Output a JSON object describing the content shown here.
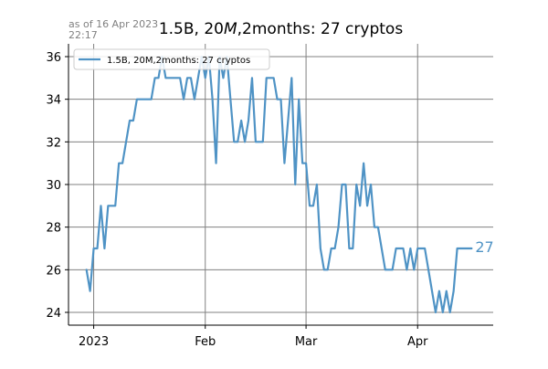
{
  "header": {
    "stamp_line1": "as of 16 Apr 2023",
    "stamp_line2": "22:17",
    "title_a": "1.5B, 20",
    "title_b": "M",
    "title_c": ",2months: 27 cryptos"
  },
  "colors": {
    "line": "#4f93c5",
    "grid": "#808080",
    "stamp": "#808080"
  },
  "chart_data": {
    "type": "line",
    "title": "1.5B, 20M,2months: 27 cryptos",
    "xlabel": "",
    "ylabel": "",
    "x_ticks": [
      {
        "label": "2023",
        "date": "2023-01-01"
      },
      {
        "label": "Feb",
        "date": "2023-02-01"
      },
      {
        "label": "Mar",
        "date": "2023-03-01"
      },
      {
        "label": "Apr",
        "date": "2023-04-01"
      }
    ],
    "y_ticks": [
      24,
      26,
      28,
      30,
      32,
      34,
      36
    ],
    "xlim": [
      "2022-12-25",
      "2023-04-22"
    ],
    "ylim": [
      23.4,
      36.6
    ],
    "grid": true,
    "legend_position": "top-left",
    "end_label": "27",
    "series": [
      {
        "name": "1.5B, 20M,2months: 27 cryptos",
        "x": [
          "2022-12-30",
          "2022-12-31",
          "2023-01-01",
          "2023-01-02",
          "2023-01-03",
          "2023-01-04",
          "2023-01-05",
          "2023-01-06",
          "2023-01-07",
          "2023-01-08",
          "2023-01-09",
          "2023-01-10",
          "2023-01-11",
          "2023-01-12",
          "2023-01-13",
          "2023-01-14",
          "2023-01-15",
          "2023-01-16",
          "2023-01-17",
          "2023-01-18",
          "2023-01-19",
          "2023-01-20",
          "2023-01-21",
          "2023-01-22",
          "2023-01-23",
          "2023-01-24",
          "2023-01-25",
          "2023-01-26",
          "2023-01-27",
          "2023-01-28",
          "2023-01-29",
          "2023-01-30",
          "2023-01-31",
          "2023-02-01",
          "2023-02-02",
          "2023-02-03",
          "2023-02-04",
          "2023-02-05",
          "2023-02-06",
          "2023-02-07",
          "2023-02-08",
          "2023-02-09",
          "2023-02-10",
          "2023-02-11",
          "2023-02-12",
          "2023-02-13",
          "2023-02-14",
          "2023-02-15",
          "2023-02-16",
          "2023-02-17",
          "2023-02-18",
          "2023-02-19",
          "2023-02-20",
          "2023-02-21",
          "2023-02-22",
          "2023-02-23",
          "2023-02-24",
          "2023-02-25",
          "2023-02-26",
          "2023-02-27",
          "2023-02-28",
          "2023-03-01",
          "2023-03-02",
          "2023-03-03",
          "2023-03-04",
          "2023-03-05",
          "2023-03-06",
          "2023-03-07",
          "2023-03-08",
          "2023-03-09",
          "2023-03-10",
          "2023-03-11",
          "2023-03-12",
          "2023-03-13",
          "2023-03-14",
          "2023-03-15",
          "2023-03-16",
          "2023-03-17",
          "2023-03-18",
          "2023-03-19",
          "2023-03-20",
          "2023-03-21",
          "2023-03-22",
          "2023-03-23",
          "2023-03-24",
          "2023-03-25",
          "2023-03-26",
          "2023-03-27",
          "2023-03-28",
          "2023-03-29",
          "2023-03-30",
          "2023-03-31",
          "2023-04-01",
          "2023-04-02",
          "2023-04-03",
          "2023-04-04",
          "2023-04-05",
          "2023-04-06",
          "2023-04-07",
          "2023-04-08",
          "2023-04-09",
          "2023-04-10",
          "2023-04-11",
          "2023-04-12",
          "2023-04-13",
          "2023-04-14",
          "2023-04-15",
          "2023-04-16"
        ],
        "values": [
          26,
          25,
          27,
          27,
          29,
          27,
          29,
          29,
          29,
          31,
          31,
          32,
          33,
          33,
          34,
          34,
          34,
          34,
          34,
          35,
          35,
          36,
          35,
          35,
          35,
          35,
          35,
          34,
          35,
          35,
          34,
          35,
          36,
          35,
          36,
          34,
          31,
          36,
          35,
          36,
          34,
          32,
          32,
          33,
          32,
          33,
          35,
          32,
          32,
          32,
          35,
          35,
          35,
          34,
          34,
          31,
          33,
          35,
          30,
          34,
          31,
          31,
          29,
          29,
          30,
          27,
          26,
          26,
          27,
          27,
          28,
          30,
          30,
          27,
          27,
          30,
          29,
          31,
          29,
          30,
          28,
          28,
          27,
          26,
          26,
          26,
          27,
          27,
          27,
          26,
          27,
          26,
          27,
          27,
          27,
          26,
          25,
          24,
          25,
          24,
          25,
          24,
          25,
          27,
          27,
          27,
          27,
          27
        ]
      }
    ]
  }
}
